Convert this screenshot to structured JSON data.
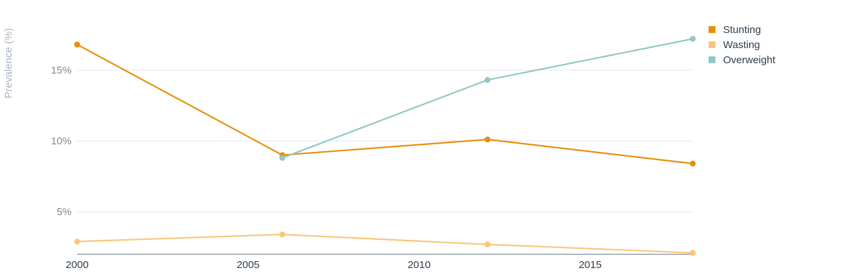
{
  "chart_data": {
    "type": "line",
    "ylabel": "Prevalence (%)",
    "xlabel": "",
    "xlim": [
      2000,
      2018
    ],
    "ylim": [
      2,
      18
    ],
    "x_ticks": [
      2000,
      2005,
      2010,
      2015
    ],
    "x_tick_labels": [
      "2000",
      "2005",
      "2010",
      "2015"
    ],
    "y_ticks": [
      5,
      10,
      15
    ],
    "y_tick_labels": [
      "5%",
      "10%",
      "15%"
    ],
    "grid": true,
    "legend_position": "top-right",
    "series": [
      {
        "name": "Stunting",
        "color": "#e8900c",
        "points": [
          [
            2000,
            16.8
          ],
          [
            2006,
            9.0
          ],
          [
            2012,
            10.1
          ],
          [
            2018,
            8.4
          ]
        ]
      },
      {
        "name": "Wasting",
        "color": "#f9c77c",
        "points": [
          [
            2000,
            2.9
          ],
          [
            2006,
            3.4
          ],
          [
            2012,
            2.7
          ],
          [
            2018,
            2.1
          ]
        ]
      },
      {
        "name": "Overweight",
        "color": "#92c8c5",
        "points": [
          [
            2006,
            8.8
          ],
          [
            2012,
            14.3
          ],
          [
            2018,
            17.2
          ]
        ]
      }
    ]
  }
}
